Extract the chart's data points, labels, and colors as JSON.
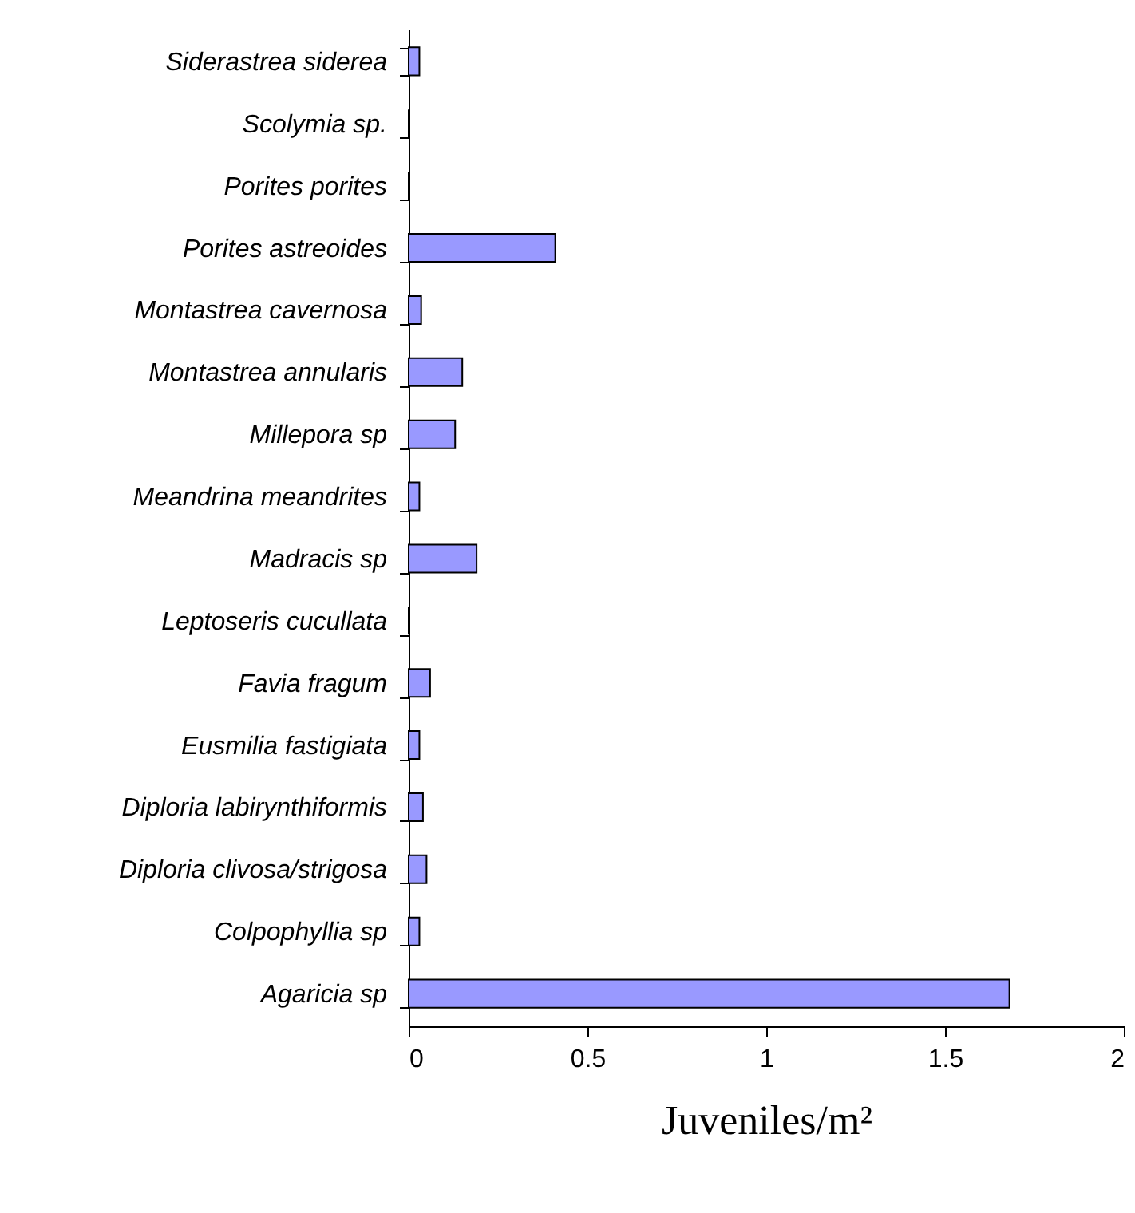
{
  "chart_data": {
    "type": "bar",
    "orientation": "horizontal",
    "xlabel": "Juveniles/m²",
    "categories": [
      "Siderastrea siderea",
      "Scolymia sp.",
      "Porites porites",
      "Porites astreoides",
      "Montastrea cavernosa",
      "Montastrea annularis",
      "Millepora sp",
      "Meandrina meandrites",
      "Madracis sp",
      "Leptoseris cucullata",
      "Favia fragum",
      "Eusmilia fastigiata",
      "Diploria labirynthiformis",
      "Diploria clivosa/strigosa",
      "Colpophyllia sp",
      "Agaricia sp"
    ],
    "values": [
      0.03,
      0,
      0,
      0.41,
      0.035,
      0.15,
      0.13,
      0.03,
      0.19,
      0,
      0.06,
      0.03,
      0.04,
      0.05,
      0.03,
      1.68
    ],
    "color": "#9999ff",
    "xlim": [
      0,
      2
    ],
    "xticks": [
      0,
      0.5,
      1,
      1.5,
      2
    ],
    "grid": false
  }
}
